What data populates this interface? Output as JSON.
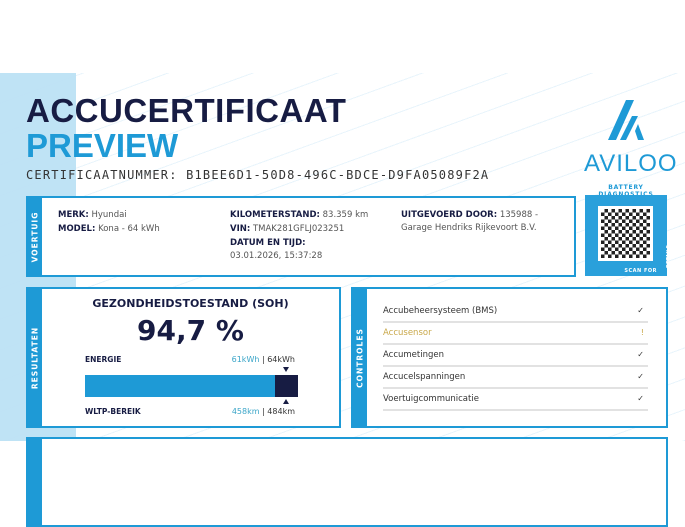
{
  "header": {
    "title": "ACCUCERTIFICAAT",
    "subtitle": "PREVIEW",
    "certificate_number": "CERTIFICAATNUMMER: B1BEE6D1-50D8-496C-BDCE-D9FA05089F2A"
  },
  "logo": {
    "name": "AVILOO",
    "tagline": "BATTERY DIAGNOSTICS"
  },
  "vehicle": {
    "tab": "VOERTUIG",
    "make_label": "MERK:",
    "make": "Hyundai",
    "model_label": "MODEL:",
    "model": "Kona - 64 kWh",
    "mileage_label": "KILOMETERSTAND:",
    "mileage": "83.359 km",
    "vin_label": "VIN:",
    "vin": "TMAK281GFLJ023251",
    "datetime_label": "DATUM EN TIJD:",
    "datetime": "03.01.2026, 15:37:28",
    "performed_by_label": "UITGEVOERD DOOR:",
    "performed_by": "135988 - Garage Hendriks Rijkevoort B.V."
  },
  "qr": {
    "scan_label": "SCAN FOR",
    "details_label": "DETAILS"
  },
  "results": {
    "tab": "RESULTATEN",
    "soh_title": "GEZONDHEIDSTOESTAND (SOH)",
    "soh_value": "94,7 %",
    "soh_percent": 94.7,
    "energy_label": "ENERGIE",
    "energy_current": "61kWh",
    "energy_sep": " | ",
    "energy_nominal": "64kWh",
    "range_label": "WLTP-BEREIK",
    "range_current": "458km",
    "range_sep": " | ",
    "range_nominal": "484km"
  },
  "checks": {
    "tab": "CONTROLES",
    "items": [
      {
        "label": "Accubeheersysteem (BMS)",
        "status": "ok",
        "icon": "✓"
      },
      {
        "label": "Accusensor",
        "status": "warning",
        "icon": "!"
      },
      {
        "label": "Accumetingen",
        "status": "ok",
        "icon": "✓"
      },
      {
        "label": "Accucelspanningen",
        "status": "ok",
        "icon": "✓"
      },
      {
        "label": "Voertuigcommunicatie",
        "status": "ok",
        "icon": "✓"
      }
    ]
  },
  "colors": {
    "accent": "#1e9ad6",
    "navy": "#171c43",
    "warning": "#c9a84a"
  }
}
